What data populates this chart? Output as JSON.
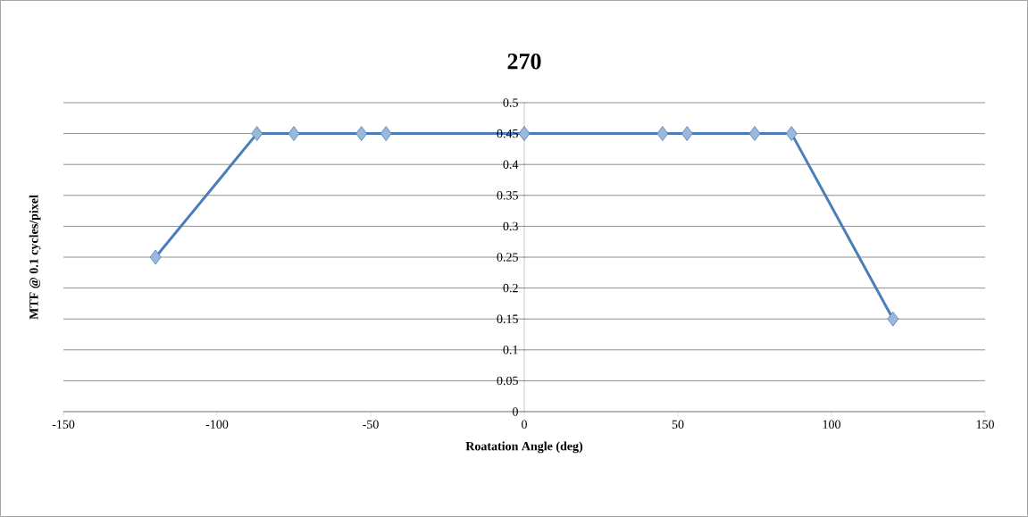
{
  "chart_data": {
    "type": "line",
    "title": "270",
    "xlabel": "Roatation Angle (deg)",
    "ylabel": "MTF @ 0.1 cycles/pixel",
    "x": [
      -120,
      -87,
      -75,
      -53,
      -45,
      0,
      45,
      53,
      75,
      87,
      120
    ],
    "series": [
      {
        "color": "#4a7ebb",
        "values": [
          0.25,
          0.45,
          0.45,
          0.45,
          0.45,
          0.45,
          0.45,
          0.45,
          0.45,
          0.45,
          0.15
        ]
      }
    ],
    "xlim": [
      -150,
      150
    ],
    "xticks": [
      -150,
      -100,
      -50,
      0,
      50,
      100,
      150
    ],
    "ylim": [
      0,
      0.5
    ],
    "yticks": [
      0,
      0.05,
      0.1,
      0.15,
      0.2,
      0.25,
      0.3,
      0.35,
      0.4,
      0.45,
      0.5
    ],
    "grid": "y",
    "legend": false,
    "marker": "diamond",
    "line_style": "solid"
  }
}
